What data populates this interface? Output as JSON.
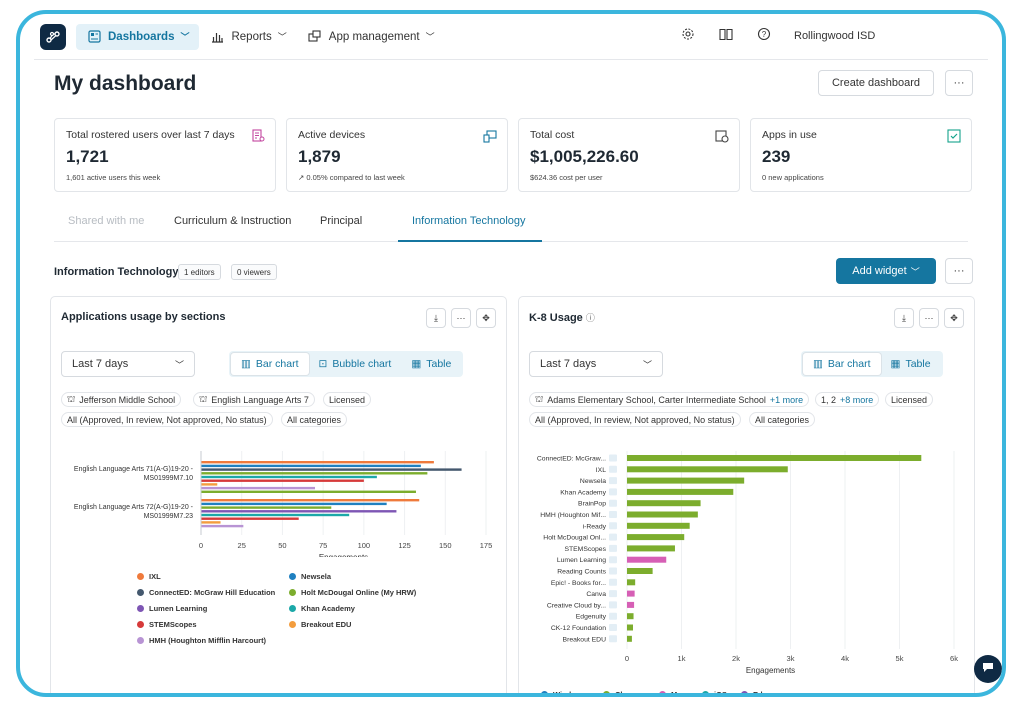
{
  "nav": {
    "items": [
      {
        "label": "Dashboards",
        "icon": "dashboard-icon"
      },
      {
        "label": "Reports",
        "icon": "bar-chart-icon"
      },
      {
        "label": "App management",
        "icon": "apps-icon"
      }
    ],
    "org": "Rollingwood ISD"
  },
  "header": {
    "title": "My dashboard",
    "create_label": "Create dashboard",
    "more_label": "···"
  },
  "stats": [
    {
      "label": "Total rostered users over last 7 days",
      "value": "1,721",
      "sub": "1,601 active users this week",
      "icon": "users-list-icon",
      "color": "#c2459f"
    },
    {
      "label": "Active devices",
      "value": "1,879",
      "sub": "↗ 0.05% compared to last week",
      "icon": "devices-icon",
      "color": "#1576a0"
    },
    {
      "label": "Total cost",
      "value": "$1,005,226.60",
      "sub": "$624.36 cost per user",
      "icon": "cost-icon",
      "color": "#444"
    },
    {
      "label": "Apps in use",
      "value": "239",
      "sub": "0 new applications",
      "icon": "apps-check-icon",
      "color": "#14a38b"
    }
  ],
  "tabs": [
    "Shared with me",
    "Curriculum & Instruction",
    "Principal",
    "Information Technology"
  ],
  "section": {
    "title": "Information Technology",
    "editors": "1 editors",
    "viewers": "0 viewers",
    "add_widget": "Add widget"
  },
  "widget1": {
    "title": "Applications usage by sections",
    "range": "Last 7 days",
    "views": [
      "Bar chart",
      "Bubble chart",
      "Table"
    ],
    "chips_row1": [
      "Jefferson Middle School",
      "English Language Arts 7",
      "Licensed"
    ],
    "chips_row2": [
      "All (Approved, In review, Not approved, No status)",
      "All categories"
    ]
  },
  "widget2": {
    "title": "K-8 Usage",
    "range": "Last 7 days",
    "views": [
      "Bar chart",
      "Table"
    ],
    "chip_school": "Adams Elementary School, Carter Intermediate School",
    "chip_school_more": "+1 more",
    "chip_grade": "1, 2",
    "chip_grade_more": "+8 more",
    "chip_licensed": "Licensed",
    "chips_row2": [
      "All (Approved, In review, Not approved, No status)",
      "All categories"
    ]
  },
  "chart_data": [
    {
      "type": "bar",
      "orientation": "horizontal",
      "categories": [
        "English Language Arts 71(A-G)19-20 - MS01999M7.10",
        "English Language Arts 72(A-G)19-20 - MS01999M7.23"
      ],
      "xlabel": "Engagements",
      "xticks": [
        0,
        25,
        50,
        75,
        100,
        125,
        150,
        175
      ],
      "xlim": [
        0,
        175
      ],
      "series": [
        {
          "name": "IXL",
          "color": "#ef7a3c",
          "values": [
            143,
            134
          ]
        },
        {
          "name": "Newsela",
          "color": "#1f80c0",
          "values": [
            135,
            114
          ]
        },
        {
          "name": "ConnectED: McGraw Hill Education",
          "color": "#44586e",
          "values": [
            160,
            0
          ]
        },
        {
          "name": "Holt McDougal Online (My HRW)",
          "color": "#7cad2d",
          "values": [
            139,
            80
          ]
        },
        {
          "name": "Lumen Learning",
          "color": "#7e56b4",
          "values": [
            0,
            120
          ]
        },
        {
          "name": "Khan Academy",
          "color": "#1ca8a8",
          "values": [
            108,
            91
          ]
        },
        {
          "name": "STEMScopes",
          "color": "#d63a3a",
          "values": [
            100,
            60
          ]
        },
        {
          "name": "Breakout EDU",
          "color": "#f39d3e",
          "values": [
            10,
            12
          ]
        },
        {
          "name": "HMH (Houghton Mifflin Harcourt)",
          "color": "#b894d4",
          "values": [
            70,
            0
          ]
        }
      ],
      "extra_bars": [
        {
          "category": 0,
          "color": "#7cad2d",
          "value": 132
        },
        {
          "category": 1,
          "color": "#b894d4",
          "value": 26
        }
      ]
    },
    {
      "type": "bar",
      "orientation": "horizontal",
      "categories": [
        "ConnectED: McGraw...",
        "IXL",
        "Newsela",
        "Khan Academy",
        "BrainPop",
        "HMH (Houghton Mif...",
        "i-Ready",
        "Holt McDougal Onl...",
        "STEMScopes",
        "Lumen Learning",
        "Reading Counts",
        "Epic! - Books for...",
        "Canva",
        "Creative Cloud by...",
        "Edgenuity",
        "CK-12 Foundation",
        "Breakout EDU"
      ],
      "values": [
        5400,
        2950,
        2150,
        1950,
        1350,
        1300,
        1150,
        1050,
        880,
        720,
        470,
        150,
        140,
        130,
        120,
        110,
        90
      ],
      "bar_colors": [
        "#7cad2d",
        "#7cad2d",
        "#7cad2d",
        "#7cad2d",
        "#7cad2d",
        "#7cad2d",
        "#7cad2d",
        "#7cad2d",
        "#7cad2d",
        "#d65fb5",
        "#7cad2d",
        "#7cad2d",
        "#d65fb5",
        "#d65fb5",
        "#7cad2d",
        "#7cad2d",
        "#7cad2d"
      ],
      "xlabel": "Engagements",
      "xticks": [
        "0",
        "1k",
        "2k",
        "3k",
        "4k",
        "5k",
        "6k"
      ],
      "xlim": [
        0,
        6000
      ],
      "legend": [
        {
          "name": "Windows",
          "color": "#1f80c0"
        },
        {
          "name": "Chrome",
          "color": "#7cad2d"
        },
        {
          "name": "Mac",
          "color": "#d65fb5"
        },
        {
          "name": "iOS",
          "color": "#1ca8a8"
        },
        {
          "name": "Edge",
          "color": "#7e56b4"
        }
      ]
    }
  ]
}
